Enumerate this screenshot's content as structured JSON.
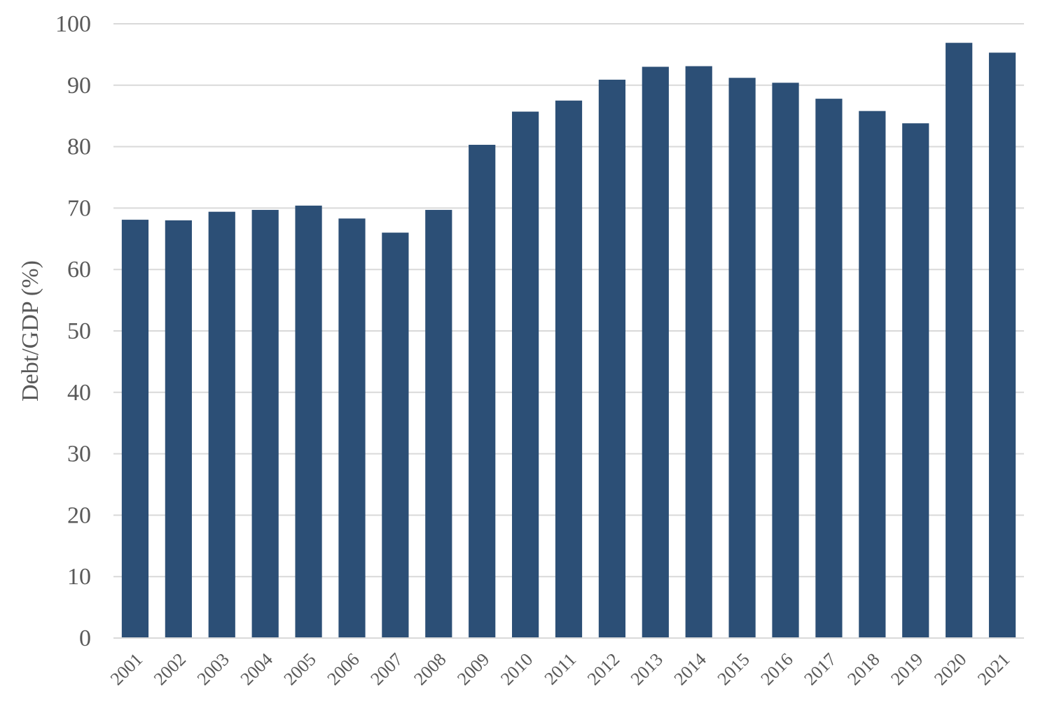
{
  "chart_data": {
    "type": "bar",
    "title": "",
    "xlabel": "",
    "ylabel": "Debt/GDP (%)",
    "ylim": [
      0,
      100
    ],
    "yticks": [
      0,
      10,
      20,
      30,
      40,
      50,
      60,
      70,
      80,
      90,
      100
    ],
    "grid": true,
    "legend": "none",
    "bar_color": "#2c4f76",
    "grid_color": "#d9d9d9",
    "text_color": "#595959",
    "categories": [
      "2001",
      "2002",
      "2003",
      "2004",
      "2005",
      "2006",
      "2007",
      "2008",
      "2009",
      "2010",
      "2011",
      "2012",
      "2013",
      "2014",
      "2015",
      "2016",
      "2017",
      "2018",
      "2019",
      "2020",
      "2021"
    ],
    "values": [
      68.1,
      68.0,
      69.4,
      69.7,
      70.4,
      68.3,
      66.0,
      69.7,
      80.3,
      85.7,
      87.5,
      90.9,
      93.0,
      93.1,
      91.2,
      90.4,
      87.8,
      85.8,
      83.8,
      96.9,
      95.3
    ]
  }
}
